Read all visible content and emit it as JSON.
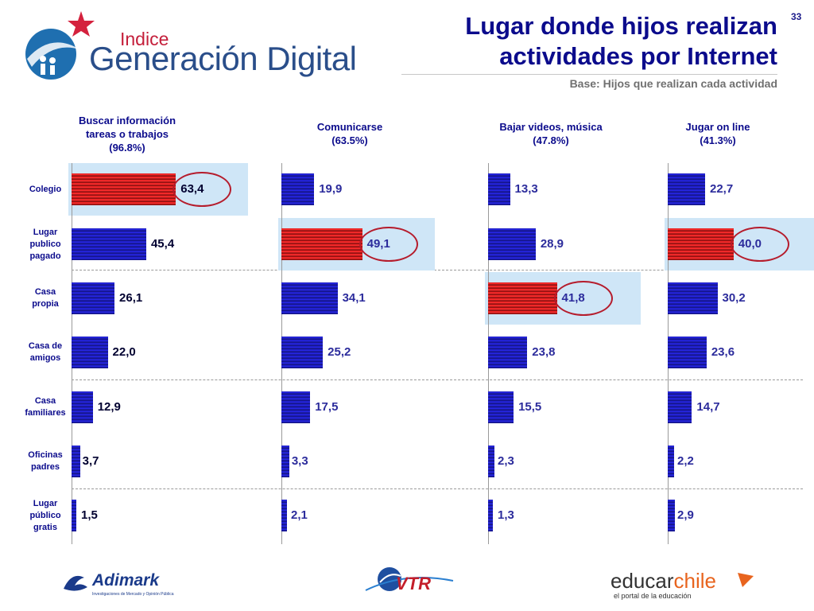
{
  "page_number": "33",
  "title_line1": "Lugar donde hijos realizan",
  "title_line2": "actividades por Internet",
  "subtitle": "Base: Hijos que realizan cada actividad",
  "logo": {
    "small": "Indice",
    "main": "Generación Digital"
  },
  "footer_logos": {
    "adimark": "Adimark",
    "adimark_tagline": "Investigaciones de Mercado y Opinión Pública",
    "vtr": "VTR",
    "educar_a": "educar",
    "educar_b": "chile",
    "educar_tagline": "el portal de la educación"
  },
  "colors": {
    "bar": "#2222cc",
    "highlight_bar": "#e02020",
    "highlight_bg": "#cfe6f7",
    "circle": "#b51c2c",
    "title": "#0b0b8c"
  },
  "chart_data": {
    "type": "bar",
    "orientation": "horizontal",
    "categories": [
      "Colegio",
      "Lugar publico pagado",
      "Casa propia",
      "Casa de amigos",
      "Casa familiares",
      "Oficinas padres",
      "Lugar público gratis"
    ],
    "category_lines": [
      [
        "Colegio"
      ],
      [
        "Lugar",
        "publico",
        "pagado"
      ],
      [
        "Casa",
        "propia"
      ],
      [
        "Casa de",
        "amigos"
      ],
      [
        "Casa",
        "familiares"
      ],
      [
        "Oficinas",
        "padres"
      ],
      [
        "Lugar",
        "público",
        "gratis"
      ]
    ],
    "panels": [
      {
        "header": [
          "Buscar información",
          "tareas o trabajos",
          "(96.8%)"
        ],
        "values": [
          "63,4",
          "45,4",
          "26,1",
          "22,0",
          "12,9",
          "3,7",
          "1,5"
        ],
        "highlight_index": 0
      },
      {
        "header": [
          "Comunicarse",
          "(63.5%)"
        ],
        "values": [
          "19,9",
          "49,1",
          "34,1",
          "25,2",
          "17,5",
          "3,3",
          "2,1"
        ],
        "highlight_index": 1
      },
      {
        "header": [
          "Bajar videos, música",
          "(47.8%)"
        ],
        "values": [
          "13,3",
          "28,9",
          "41,8",
          "23,8",
          "15,5",
          "2,3",
          "1,3"
        ],
        "highlight_index": 2
      },
      {
        "header": [
          "Jugar on line",
          "(41.3%)"
        ],
        "values": [
          "22,7",
          "40,0",
          "30,2",
          "23,6",
          "14,7",
          "2,2",
          "2,9"
        ],
        "highlight_index": 1
      }
    ]
  }
}
